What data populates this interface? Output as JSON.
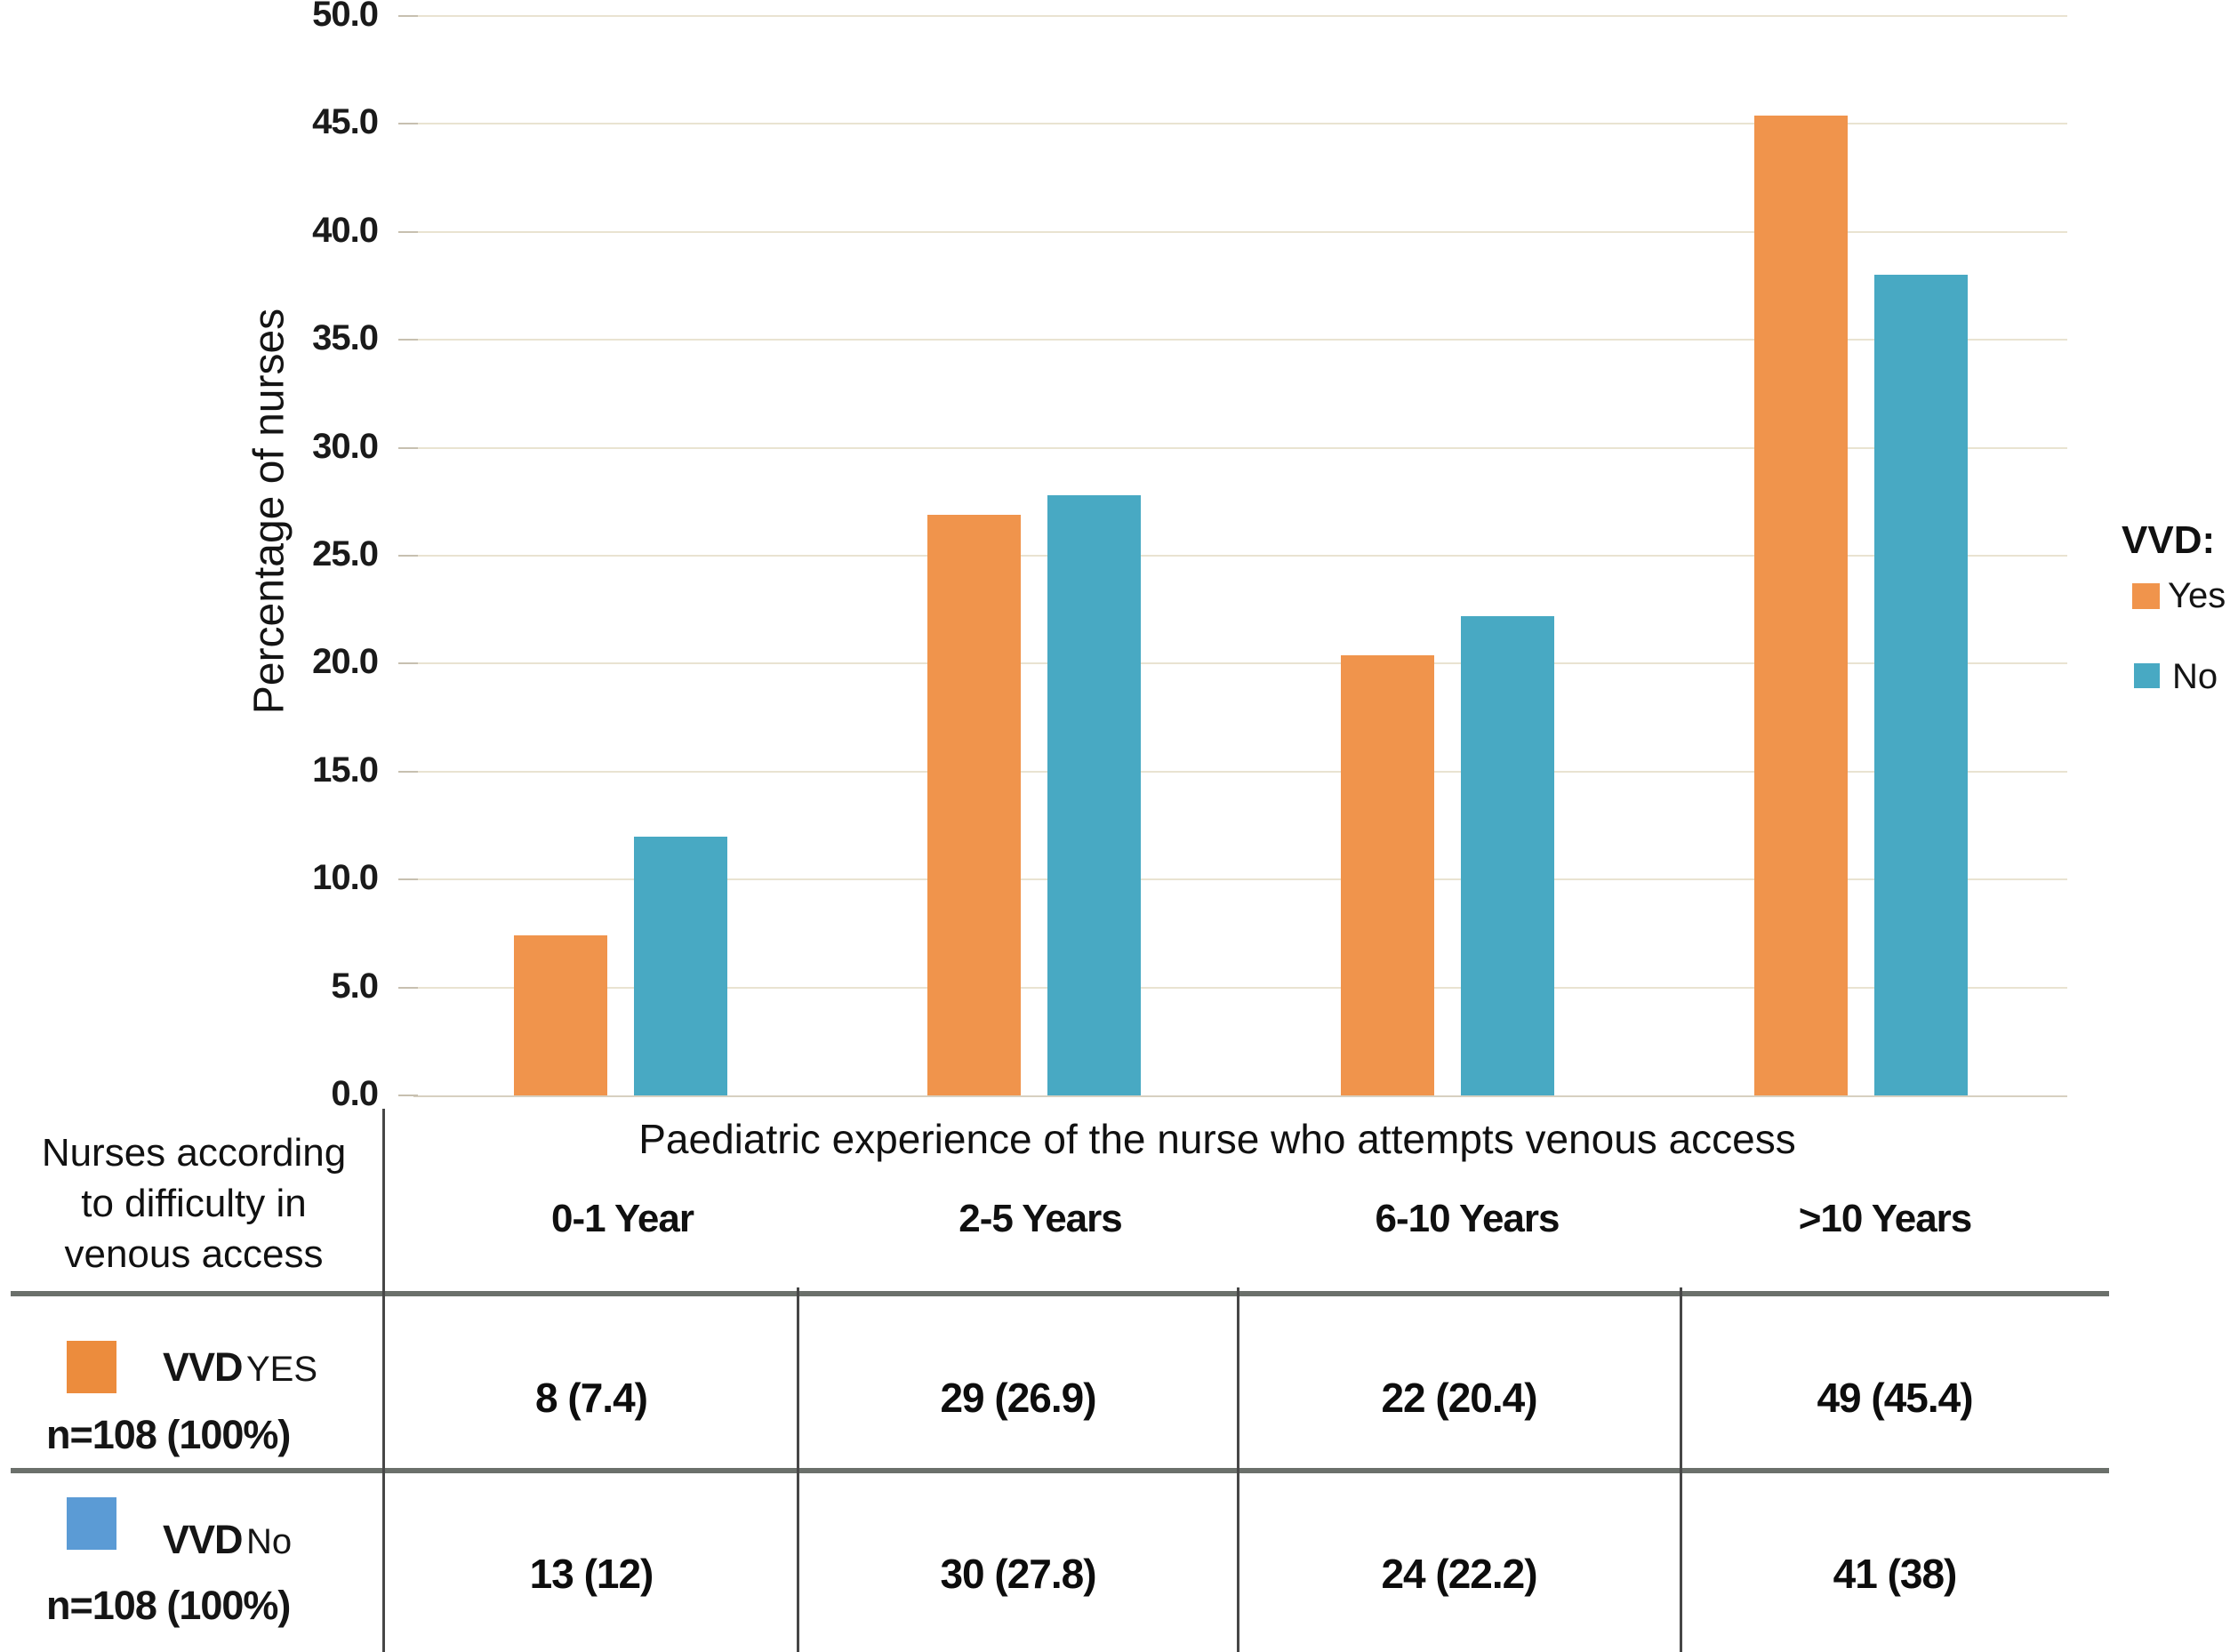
{
  "chart_data": {
    "type": "bar",
    "categories": [
      "0-1 Year",
      "2-5 Years",
      "6-10 Years",
      ">10 Years"
    ],
    "series": [
      {
        "name": "Yes",
        "color": "#f0944c",
        "values": [
          7.4,
          26.9,
          20.4,
          45.4
        ]
      },
      {
        "name": "No",
        "color": "#48a9c3",
        "values": [
          12,
          27.8,
          22.2,
          38
        ]
      }
    ],
    "xlabel": "Paediatric experience of the nurse who attempts venous access",
    "ylabel": "Percentage of nurses",
    "ylim": [
      0,
      50
    ],
    "ytick_labels": [
      "0.0",
      "5.0",
      "10.0",
      "15.0",
      "20.0",
      "25.0",
      "30.0",
      "35.0",
      "40.0",
      "45.0",
      "50.0"
    ],
    "grid": "horizontal",
    "legend_position": "right"
  },
  "legend": {
    "title": "VVD:",
    "items": [
      {
        "label": "Yes",
        "color": "#f0944c"
      },
      {
        "label": "No",
        "color": "#48a9c3"
      }
    ]
  },
  "table": {
    "stub_header_lines": [
      "Nurses according",
      "to difficulty in",
      "venous access"
    ],
    "column_headers": [
      "0-1 Year",
      "2-5 Years",
      "6-10 Years",
      ">10 Years"
    ],
    "rows": [
      {
        "swatch_color": "#ec8c3d",
        "label_main": "VVD",
        "label_sub": "YES",
        "n_label": "n=108 (100%)",
        "values": [
          "8 (7.4)",
          "29 (26.9)",
          "22 (20.4)",
          "49 (45.4)"
        ]
      },
      {
        "swatch_color": "#5b9bd5",
        "label_main": "VVD",
        "label_sub": "No",
        "n_label": "n=108 (100%)",
        "values": [
          "13 (12)",
          "30 (27.8)",
          "24 (22.2)",
          "41 (38)"
        ]
      }
    ]
  },
  "colors": {
    "bar_yes": "#f0944c",
    "bar_no": "#48a9c3",
    "gridline": "#e9e3d1",
    "table_line": "#6b706b",
    "divider": "#474747"
  }
}
